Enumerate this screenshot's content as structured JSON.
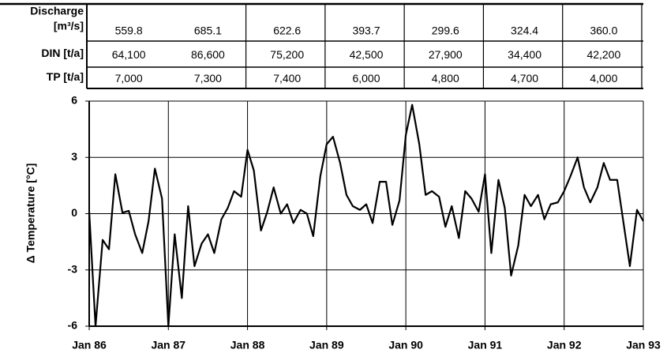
{
  "table": {
    "rows": [
      {
        "label": [
          "Discharge",
          "[m³/s]"
        ],
        "values": [
          "559.8",
          "685.1",
          "622.6",
          "393.7",
          "299.6",
          "324.4",
          "360.0"
        ]
      },
      {
        "label": [
          "DIN [t/a]"
        ],
        "values": [
          "64,100",
          "86,600",
          "75,200",
          "42,500",
          "27,900",
          "34,400",
          "42,200"
        ]
      },
      {
        "label": [
          "TP [t/a]"
        ],
        "values": [
          "7,000",
          "7,300",
          "7,400",
          "6,000",
          "4,800",
          "4,700",
          "4,000"
        ]
      }
    ]
  },
  "chart_data": {
    "type": "line",
    "y_label": "Δ Temperature [°C]",
    "x": [
      86.0,
      86.08,
      86.17,
      86.25,
      86.33,
      86.42,
      86.5,
      86.58,
      86.67,
      86.75,
      86.83,
      86.92,
      87.0,
      87.08,
      87.17,
      87.25,
      87.33,
      87.42,
      87.5,
      87.58,
      87.67,
      87.75,
      87.83,
      87.92,
      88.0,
      88.08,
      88.17,
      88.25,
      88.33,
      88.42,
      88.5,
      88.58,
      88.67,
      88.75,
      88.83,
      88.92,
      89.0,
      89.08,
      89.17,
      89.25,
      89.33,
      89.42,
      89.5,
      89.58,
      89.67,
      89.75,
      89.83,
      89.92,
      90.0,
      90.08,
      90.17,
      90.25,
      90.33,
      90.42,
      90.5,
      90.58,
      90.67,
      90.75,
      90.83,
      90.92,
      91.0,
      91.08,
      91.17,
      91.25,
      91.33,
      91.42,
      91.5,
      91.58,
      91.67,
      91.75,
      91.83,
      91.92,
      92.0,
      92.08,
      92.17,
      92.25,
      92.33,
      92.42,
      92.5,
      92.58,
      92.67,
      92.75,
      92.83,
      92.92,
      93.0
    ],
    "series": [
      {
        "color": "#000000",
        "values": [
          0.1,
          -6,
          -1.4,
          -1.9,
          2.1,
          0.05,
          0.15,
          -1.1,
          -2.1,
          -0.4,
          2.4,
          0.8,
          -6,
          -1.1,
          -4.5,
          0.4,
          -2.8,
          -1.6,
          -1.1,
          -2.1,
          -0.3,
          0.3,
          1.2,
          0.9,
          3.4,
          2.3,
          -0.9,
          0.1,
          1.4,
          0.0,
          0.5,
          -0.5,
          0.2,
          0.0,
          -1.2,
          2.0,
          3.7,
          4.1,
          2.7,
          1.0,
          0.4,
          0.2,
          0.5,
          -0.5,
          1.7,
          1.7,
          -0.6,
          0.7,
          4.2,
          5.8,
          3.7,
          1.0,
          1.2,
          0.9,
          -0.7,
          0.4,
          -1.3,
          1.2,
          0.8,
          0.1,
          2.1,
          -2.1,
          1.8,
          0.3,
          -3.3,
          -1.7,
          1.0,
          0.4,
          1.0,
          -0.3,
          0.5,
          0.6,
          1.2,
          2.0,
          3.0,
          1.4,
          0.6,
          1.4,
          2.7,
          1.8,
          1.8,
          -0.5,
          -2.8,
          0.2,
          -0.4
        ]
      }
    ],
    "xlim": [
      86,
      93
    ],
    "xticks": [
      {
        "value": 86,
        "label": "Jan 86"
      },
      {
        "value": 87,
        "label": "Jan 87"
      },
      {
        "value": 88,
        "label": "Jan 88"
      },
      {
        "value": 89,
        "label": "Jan 89"
      },
      {
        "value": 90,
        "label": "Jan 90"
      },
      {
        "value": 91,
        "label": "Jan 91"
      },
      {
        "value": 92,
        "label": "Jan 92"
      },
      {
        "value": 93,
        "label": "Jan 93"
      }
    ],
    "ylim": [
      -6,
      6
    ],
    "yticks": [
      -6,
      -3,
      0,
      3,
      6
    ],
    "grid": true
  }
}
